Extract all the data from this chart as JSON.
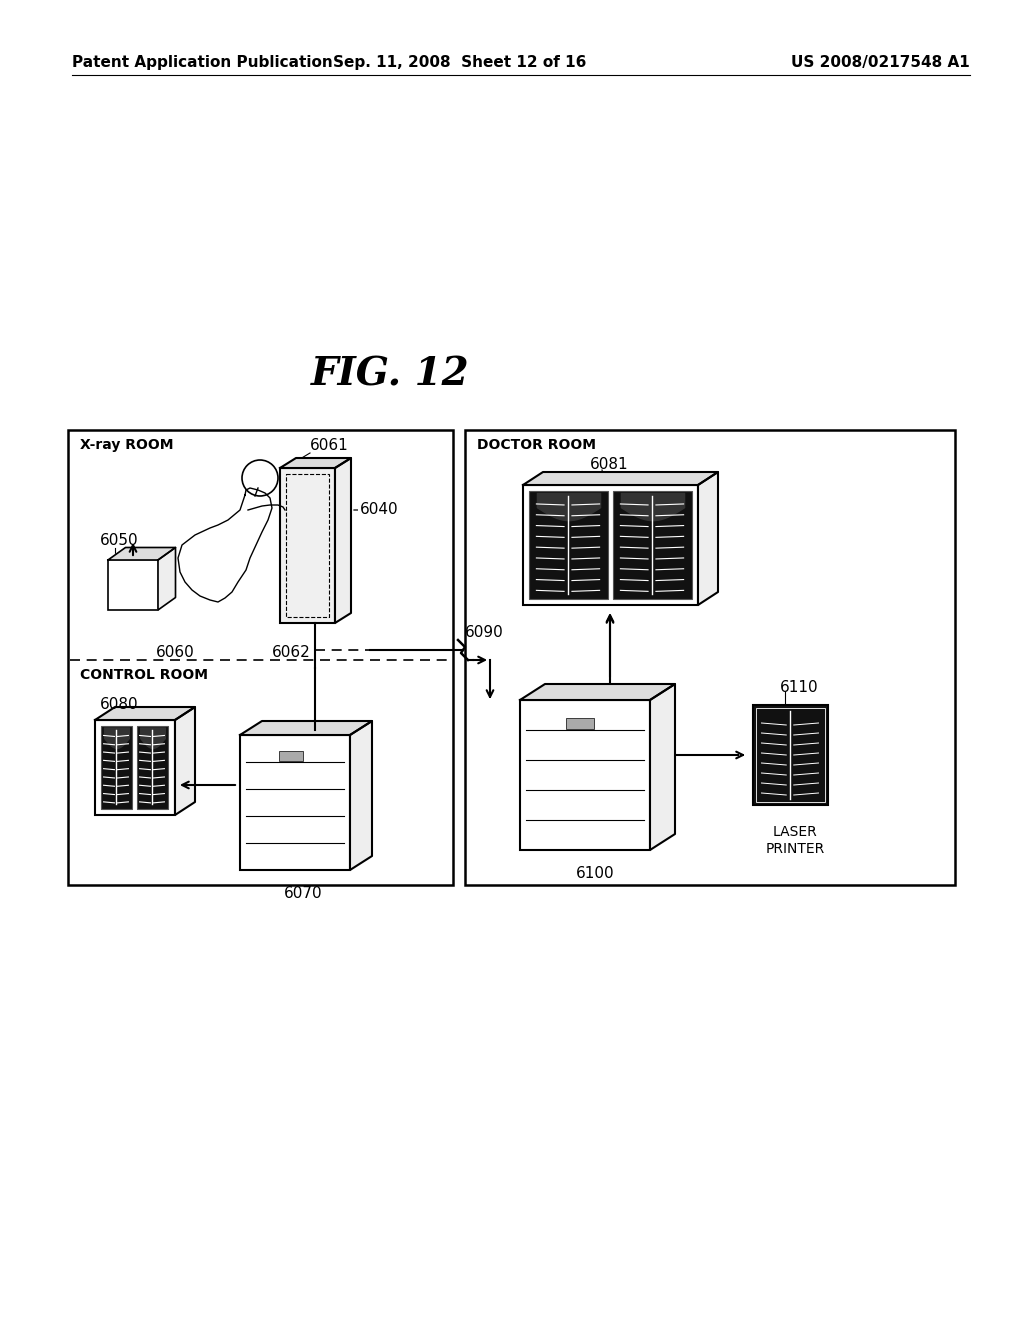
{
  "title": "FIG. 12",
  "header_left": "Patent Application Publication",
  "header_middle": "Sep. 11, 2008  Sheet 12 of 16",
  "header_right": "US 2008/0217548 A1",
  "bg_color": "#ffffff",
  "fig_title_fontsize": 28,
  "header_fontsize": 11,
  "label_fontsize": 11,
  "xray_room_label": "X-ray ROOM",
  "doctor_room_label": "DOCTOR ROOM",
  "control_room_label": "CONTROL ROOM",
  "laser_printer_label": "LASER\nPRINTER"
}
